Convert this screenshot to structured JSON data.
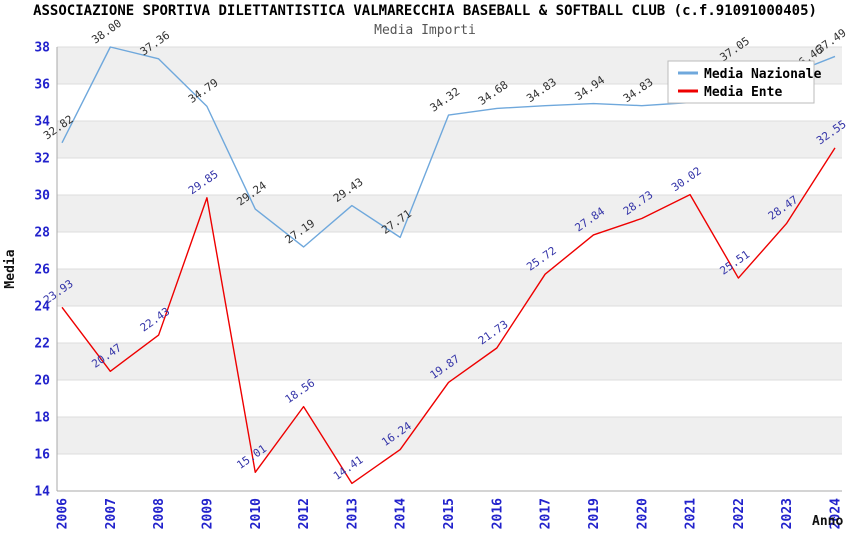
{
  "chart_data": {
    "type": "line",
    "title": "ASSOCIAZIONE SPORTIVA DILETTANTISTICA VALMARECCHIA BASEBALL & SOFTBALL CLUB (c.f.91091000405)",
    "subtitle": "Media Importi",
    "xlabel": "Anno",
    "ylabel": "Media",
    "categories": [
      "2006",
      "2007",
      "2008",
      "2009",
      "2010",
      "2012",
      "2013",
      "2014",
      "2015",
      "2016",
      "2017",
      "2019",
      "2020",
      "2021",
      "2022",
      "2023",
      "2024"
    ],
    "ylim": [
      14,
      38
    ],
    "ytick_step": 2,
    "grid": "horizontal-bands-alternating",
    "legend_position": "top-right",
    "colors": {
      "band_gray": "#EFEFEF",
      "band_white": "#FFFFFF",
      "gridline": "#DCDCDC",
      "axis": "#AAAAAA",
      "tick_label_blue": "#2222CC",
      "nazionale_line": "#6FA8DC",
      "ente_line": "#EE0000",
      "nazionale_point_label": "#303030",
      "ente_point_label": "#3434A8"
    },
    "series": [
      {
        "name": "Media Nazionale",
        "color": "#6FA8DC",
        "label_color": "#303030",
        "values": [
          32.82,
          38.0,
          37.36,
          34.79,
          29.24,
          27.19,
          29.43,
          27.71,
          34.32,
          34.68,
          34.83,
          34.94,
          34.83,
          35.0,
          37.05,
          36.46,
          37.49
        ]
      },
      {
        "name": "Media Ente",
        "color": "#EE0000",
        "label_color": "#3434A8",
        "values": [
          23.93,
          20.47,
          22.43,
          29.85,
          15.01,
          18.56,
          14.41,
          16.24,
          19.87,
          21.73,
          25.72,
          27.84,
          28.73,
          30.02,
          25.51,
          28.47,
          32.55
        ]
      }
    ]
  },
  "legend": {
    "items": [
      {
        "label": "Media Nazionale",
        "color": "#6FA8DC"
      },
      {
        "label": "Media Ente",
        "color": "#EE0000"
      }
    ]
  }
}
